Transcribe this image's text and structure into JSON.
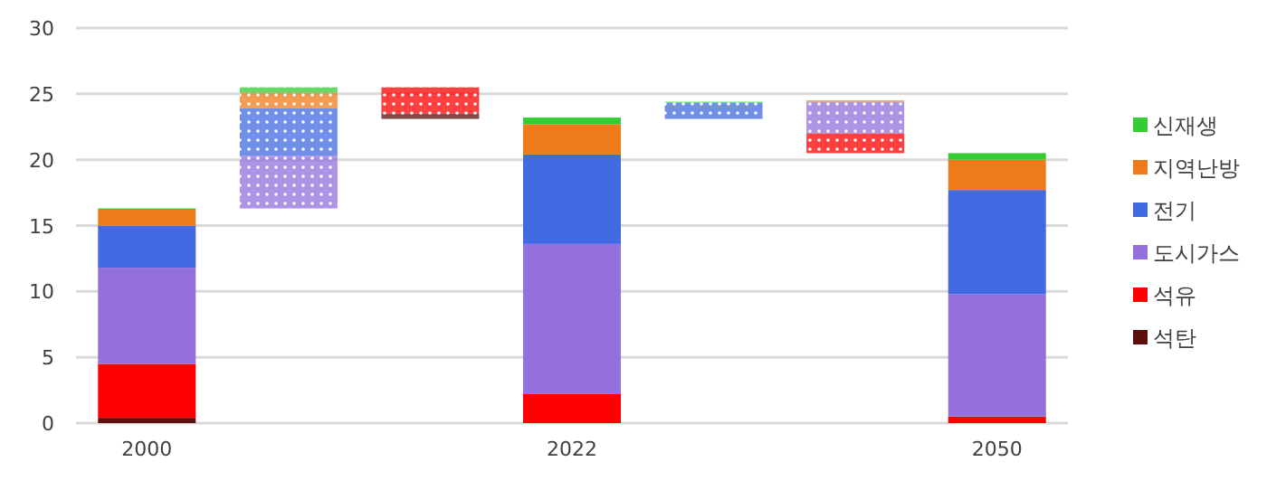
{
  "chart_data": {
    "type": "bar",
    "categories": [
      "2000",
      null,
      null,
      "2022",
      null,
      null,
      "2050"
    ],
    "series": [
      {
        "name": "석탄",
        "color": "#5c0f0f",
        "values": [
          0.4,
          null,
          0.4,
          null,
          null,
          null,
          null
        ],
        "base": [
          0,
          null,
          23.1,
          null,
          null,
          null,
          null
        ]
      },
      {
        "name": "석유",
        "color": "#ff0000",
        "values": [
          4.1,
          null,
          2.0,
          2.2,
          null,
          1.5,
          0.5
        ],
        "base": [
          0.4,
          null,
          23.5,
          0,
          null,
          20.5,
          0
        ]
      },
      {
        "name": "도시가스",
        "color": "#9370db",
        "values": [
          7.3,
          4.0,
          null,
          11.4,
          null,
          2.4,
          9.3
        ],
        "base": [
          4.5,
          16.3,
          null,
          2.2,
          null,
          22.0,
          0.5
        ]
      },
      {
        "name": "전기",
        "color": "#4169e1",
        "values": [
          3.2,
          3.6,
          null,
          6.8,
          1.2,
          null,
          7.9
        ],
        "base": [
          11.8,
          20.3,
          null,
          13.6,
          23.1,
          null,
          9.8
        ]
      },
      {
        "name": "지역난방",
        "color": "#ee7b19",
        "values": [
          1.2,
          1.2,
          null,
          2.3,
          null,
          0.1,
          2.3
        ],
        "base": [
          15.0,
          23.9,
          null,
          20.4,
          null,
          24.4,
          17.7
        ]
      },
      {
        "name": "신재생",
        "color": "#33cc33",
        "values": [
          0.1,
          0.4,
          null,
          0.5,
          0.1,
          null,
          0.5
        ],
        "base": [
          16.2,
          25.1,
          null,
          22.7,
          24.3,
          null,
          20.0
        ]
      }
    ],
    "ylim": [
      0,
      30
    ],
    "yticks": [
      0,
      5,
      10,
      15,
      20,
      25,
      30
    ],
    "grid": "y",
    "legend": "right"
  }
}
